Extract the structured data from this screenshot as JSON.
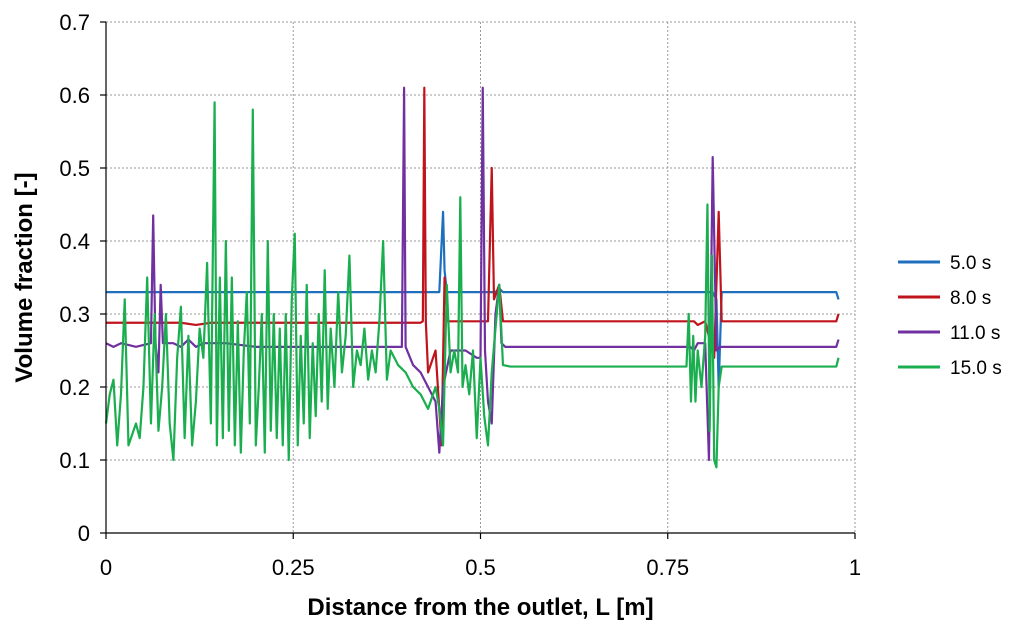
{
  "chart_data": {
    "type": "line",
    "title": "",
    "xlabel": "Distance from the outlet, L [m]",
    "ylabel": "Volume fraction [-]",
    "xlim": [
      0,
      1
    ],
    "ylim": [
      0,
      0.7
    ],
    "x_ticks": [
      0,
      0.25,
      0.5,
      0.75,
      1
    ],
    "x_tick_labels": [
      "0",
      "0.25",
      "0.5",
      "0.75",
      "1"
    ],
    "y_ticks": [
      0,
      0.1,
      0.2,
      0.3,
      0.4,
      0.5,
      0.6,
      0.7
    ],
    "y_tick_labels": [
      "0",
      "0.1",
      "0.2",
      "0.3",
      "0.4",
      "0.5",
      "0.6",
      "0.7"
    ],
    "grid": true,
    "legend_position": "right",
    "series": [
      {
        "name": "5.0 s",
        "color": "#1f6fbf",
        "points": [
          [
            0,
            0.33
          ],
          [
            0.44,
            0.33
          ],
          [
            0.445,
            0.33
          ],
          [
            0.45,
            0.44
          ],
          [
            0.452,
            0.36
          ],
          [
            0.455,
            0.33
          ],
          [
            0.52,
            0.33
          ],
          [
            0.525,
            0.335
          ],
          [
            0.53,
            0.33
          ],
          [
            0.81,
            0.33
          ],
          [
            0.815,
            0.32
          ],
          [
            0.818,
            0.2
          ],
          [
            0.822,
            0.33
          ],
          [
            0.975,
            0.33
          ],
          [
            0.978,
            0.32
          ]
        ]
      },
      {
        "name": "8.0 s",
        "color": "#c0141c",
        "points": [
          [
            0,
            0.288
          ],
          [
            0.1,
            0.288
          ],
          [
            0.12,
            0.285
          ],
          [
            0.14,
            0.288
          ],
          [
            0.42,
            0.288
          ],
          [
            0.423,
            0.29
          ],
          [
            0.425,
            0.61
          ],
          [
            0.427,
            0.29
          ],
          [
            0.43,
            0.22
          ],
          [
            0.44,
            0.25
          ],
          [
            0.448,
            0.12
          ],
          [
            0.452,
            0.35
          ],
          [
            0.456,
            0.29
          ],
          [
            0.51,
            0.29
          ],
          [
            0.515,
            0.5
          ],
          [
            0.518,
            0.32
          ],
          [
            0.525,
            0.34
          ],
          [
            0.53,
            0.29
          ],
          [
            0.785,
            0.29
          ],
          [
            0.79,
            0.285
          ],
          [
            0.8,
            0.29
          ],
          [
            0.812,
            0.24
          ],
          [
            0.818,
            0.44
          ],
          [
            0.822,
            0.29
          ],
          [
            0.975,
            0.29
          ],
          [
            0.978,
            0.3
          ]
        ]
      },
      {
        "name": "11.0 s",
        "color": "#7030a0",
        "points": [
          [
            0,
            0.26
          ],
          [
            0.01,
            0.255
          ],
          [
            0.02,
            0.26
          ],
          [
            0.04,
            0.255
          ],
          [
            0.06,
            0.26
          ],
          [
            0.063,
            0.435
          ],
          [
            0.066,
            0.26
          ],
          [
            0.07,
            0.22
          ],
          [
            0.073,
            0.34
          ],
          [
            0.076,
            0.26
          ],
          [
            0.09,
            0.26
          ],
          [
            0.1,
            0.255
          ],
          [
            0.11,
            0.265
          ],
          [
            0.12,
            0.255
          ],
          [
            0.13,
            0.26
          ],
          [
            0.14,
            0.26
          ],
          [
            0.16,
            0.26
          ],
          [
            0.2,
            0.255
          ],
          [
            0.25,
            0.255
          ],
          [
            0.3,
            0.255
          ],
          [
            0.35,
            0.255
          ],
          [
            0.395,
            0.255
          ],
          [
            0.398,
            0.61
          ],
          [
            0.4,
            0.255
          ],
          [
            0.41,
            0.23
          ],
          [
            0.42,
            0.22
          ],
          [
            0.43,
            0.2
          ],
          [
            0.44,
            0.18
          ],
          [
            0.445,
            0.11
          ],
          [
            0.45,
            0.2
          ],
          [
            0.46,
            0.25
          ],
          [
            0.48,
            0.25
          ],
          [
            0.495,
            0.24
          ],
          [
            0.5,
            0.24
          ],
          [
            0.503,
            0.61
          ],
          [
            0.506,
            0.25
          ],
          [
            0.51,
            0.18
          ],
          [
            0.515,
            0.15
          ],
          [
            0.52,
            0.3
          ],
          [
            0.525,
            0.34
          ],
          [
            0.528,
            0.26
          ],
          [
            0.533,
            0.255
          ],
          [
            0.6,
            0.255
          ],
          [
            0.78,
            0.255
          ],
          [
            0.785,
            0.25
          ],
          [
            0.79,
            0.26
          ],
          [
            0.8,
            0.26
          ],
          [
            0.805,
            0.1
          ],
          [
            0.81,
            0.515
          ],
          [
            0.815,
            0.25
          ],
          [
            0.82,
            0.255
          ],
          [
            0.975,
            0.255
          ],
          [
            0.978,
            0.265
          ]
        ]
      },
      {
        "name": "15.0 s",
        "color": "#1aae4f",
        "points": [
          [
            0,
            0.15
          ],
          [
            0.005,
            0.19
          ],
          [
            0.01,
            0.21
          ],
          [
            0.015,
            0.12
          ],
          [
            0.02,
            0.19
          ],
          [
            0.025,
            0.32
          ],
          [
            0.03,
            0.12
          ],
          [
            0.04,
            0.15
          ],
          [
            0.045,
            0.13
          ],
          [
            0.05,
            0.2
          ],
          [
            0.055,
            0.35
          ],
          [
            0.06,
            0.15
          ],
          [
            0.065,
            0.3
          ],
          [
            0.07,
            0.14
          ],
          [
            0.075,
            0.2
          ],
          [
            0.08,
            0.3
          ],
          [
            0.085,
            0.15
          ],
          [
            0.09,
            0.1
          ],
          [
            0.095,
            0.24
          ],
          [
            0.1,
            0.31
          ],
          [
            0.105,
            0.13
          ],
          [
            0.11,
            0.27
          ],
          [
            0.115,
            0.12
          ],
          [
            0.12,
            0.18
          ],
          [
            0.125,
            0.28
          ],
          [
            0.13,
            0.24
          ],
          [
            0.135,
            0.37
          ],
          [
            0.14,
            0.15
          ],
          [
            0.145,
            0.59
          ],
          [
            0.148,
            0.12
          ],
          [
            0.152,
            0.35
          ],
          [
            0.156,
            0.13
          ],
          [
            0.16,
            0.4
          ],
          [
            0.164,
            0.14
          ],
          [
            0.168,
            0.35
          ],
          [
            0.172,
            0.12
          ],
          [
            0.176,
            0.29
          ],
          [
            0.18,
            0.11
          ],
          [
            0.184,
            0.25
          ],
          [
            0.188,
            0.33
          ],
          [
            0.192,
            0.15
          ],
          [
            0.196,
            0.58
          ],
          [
            0.2,
            0.12
          ],
          [
            0.204,
            0.2
          ],
          [
            0.208,
            0.3
          ],
          [
            0.212,
            0.11
          ],
          [
            0.216,
            0.4
          ],
          [
            0.22,
            0.14
          ],
          [
            0.224,
            0.3
          ],
          [
            0.228,
            0.13
          ],
          [
            0.232,
            0.28
          ],
          [
            0.236,
            0.12
          ],
          [
            0.24,
            0.3
          ],
          [
            0.244,
            0.1
          ],
          [
            0.248,
            0.32
          ],
          [
            0.252,
            0.41
          ],
          [
            0.256,
            0.12
          ],
          [
            0.26,
            0.27
          ],
          [
            0.264,
            0.15
          ],
          [
            0.268,
            0.34
          ],
          [
            0.272,
            0.13
          ],
          [
            0.276,
            0.26
          ],
          [
            0.28,
            0.16
          ],
          [
            0.284,
            0.3
          ],
          [
            0.288,
            0.18
          ],
          [
            0.292,
            0.36
          ],
          [
            0.296,
            0.17
          ],
          [
            0.3,
            0.28
          ],
          [
            0.305,
            0.2
          ],
          [
            0.31,
            0.33
          ],
          [
            0.315,
            0.22
          ],
          [
            0.32,
            0.27
          ],
          [
            0.325,
            0.38
          ],
          [
            0.33,
            0.2
          ],
          [
            0.335,
            0.25
          ],
          [
            0.34,
            0.23
          ],
          [
            0.345,
            0.28
          ],
          [
            0.35,
            0.21
          ],
          [
            0.355,
            0.25
          ],
          [
            0.36,
            0.22
          ],
          [
            0.365,
            0.29
          ],
          [
            0.37,
            0.4
          ],
          [
            0.375,
            0.21
          ],
          [
            0.38,
            0.25
          ],
          [
            0.39,
            0.23
          ],
          [
            0.4,
            0.22
          ],
          [
            0.41,
            0.2
          ],
          [
            0.42,
            0.19
          ],
          [
            0.43,
            0.17
          ],
          [
            0.44,
            0.2
          ],
          [
            0.445,
            0.17
          ],
          [
            0.45,
            0.12
          ],
          [
            0.455,
            0.34
          ],
          [
            0.46,
            0.22
          ],
          [
            0.465,
            0.25
          ],
          [
            0.47,
            0.22
          ],
          [
            0.473,
            0.46
          ],
          [
            0.476,
            0.2
          ],
          [
            0.48,
            0.23
          ],
          [
            0.485,
            0.19
          ],
          [
            0.49,
            0.25
          ],
          [
            0.495,
            0.13
          ],
          [
            0.5,
            0.24
          ],
          [
            0.505,
            0.16
          ],
          [
            0.51,
            0.12
          ],
          [
            0.515,
            0.22
          ],
          [
            0.52,
            0.28
          ],
          [
            0.525,
            0.34
          ],
          [
            0.53,
            0.23
          ],
          [
            0.54,
            0.228
          ],
          [
            0.6,
            0.228
          ],
          [
            0.7,
            0.228
          ],
          [
            0.775,
            0.228
          ],
          [
            0.778,
            0.3
          ],
          [
            0.781,
            0.18
          ],
          [
            0.784,
            0.27
          ],
          [
            0.787,
            0.18
          ],
          [
            0.79,
            0.25
          ],
          [
            0.795,
            0.2
          ],
          [
            0.8,
            0.27
          ],
          [
            0.803,
            0.45
          ],
          [
            0.806,
            0.14
          ],
          [
            0.809,
            0.38
          ],
          [
            0.812,
            0.1
          ],
          [
            0.815,
            0.09
          ],
          [
            0.818,
            0.2
          ],
          [
            0.822,
            0.228
          ],
          [
            0.975,
            0.228
          ],
          [
            0.978,
            0.24
          ]
        ]
      }
    ]
  }
}
